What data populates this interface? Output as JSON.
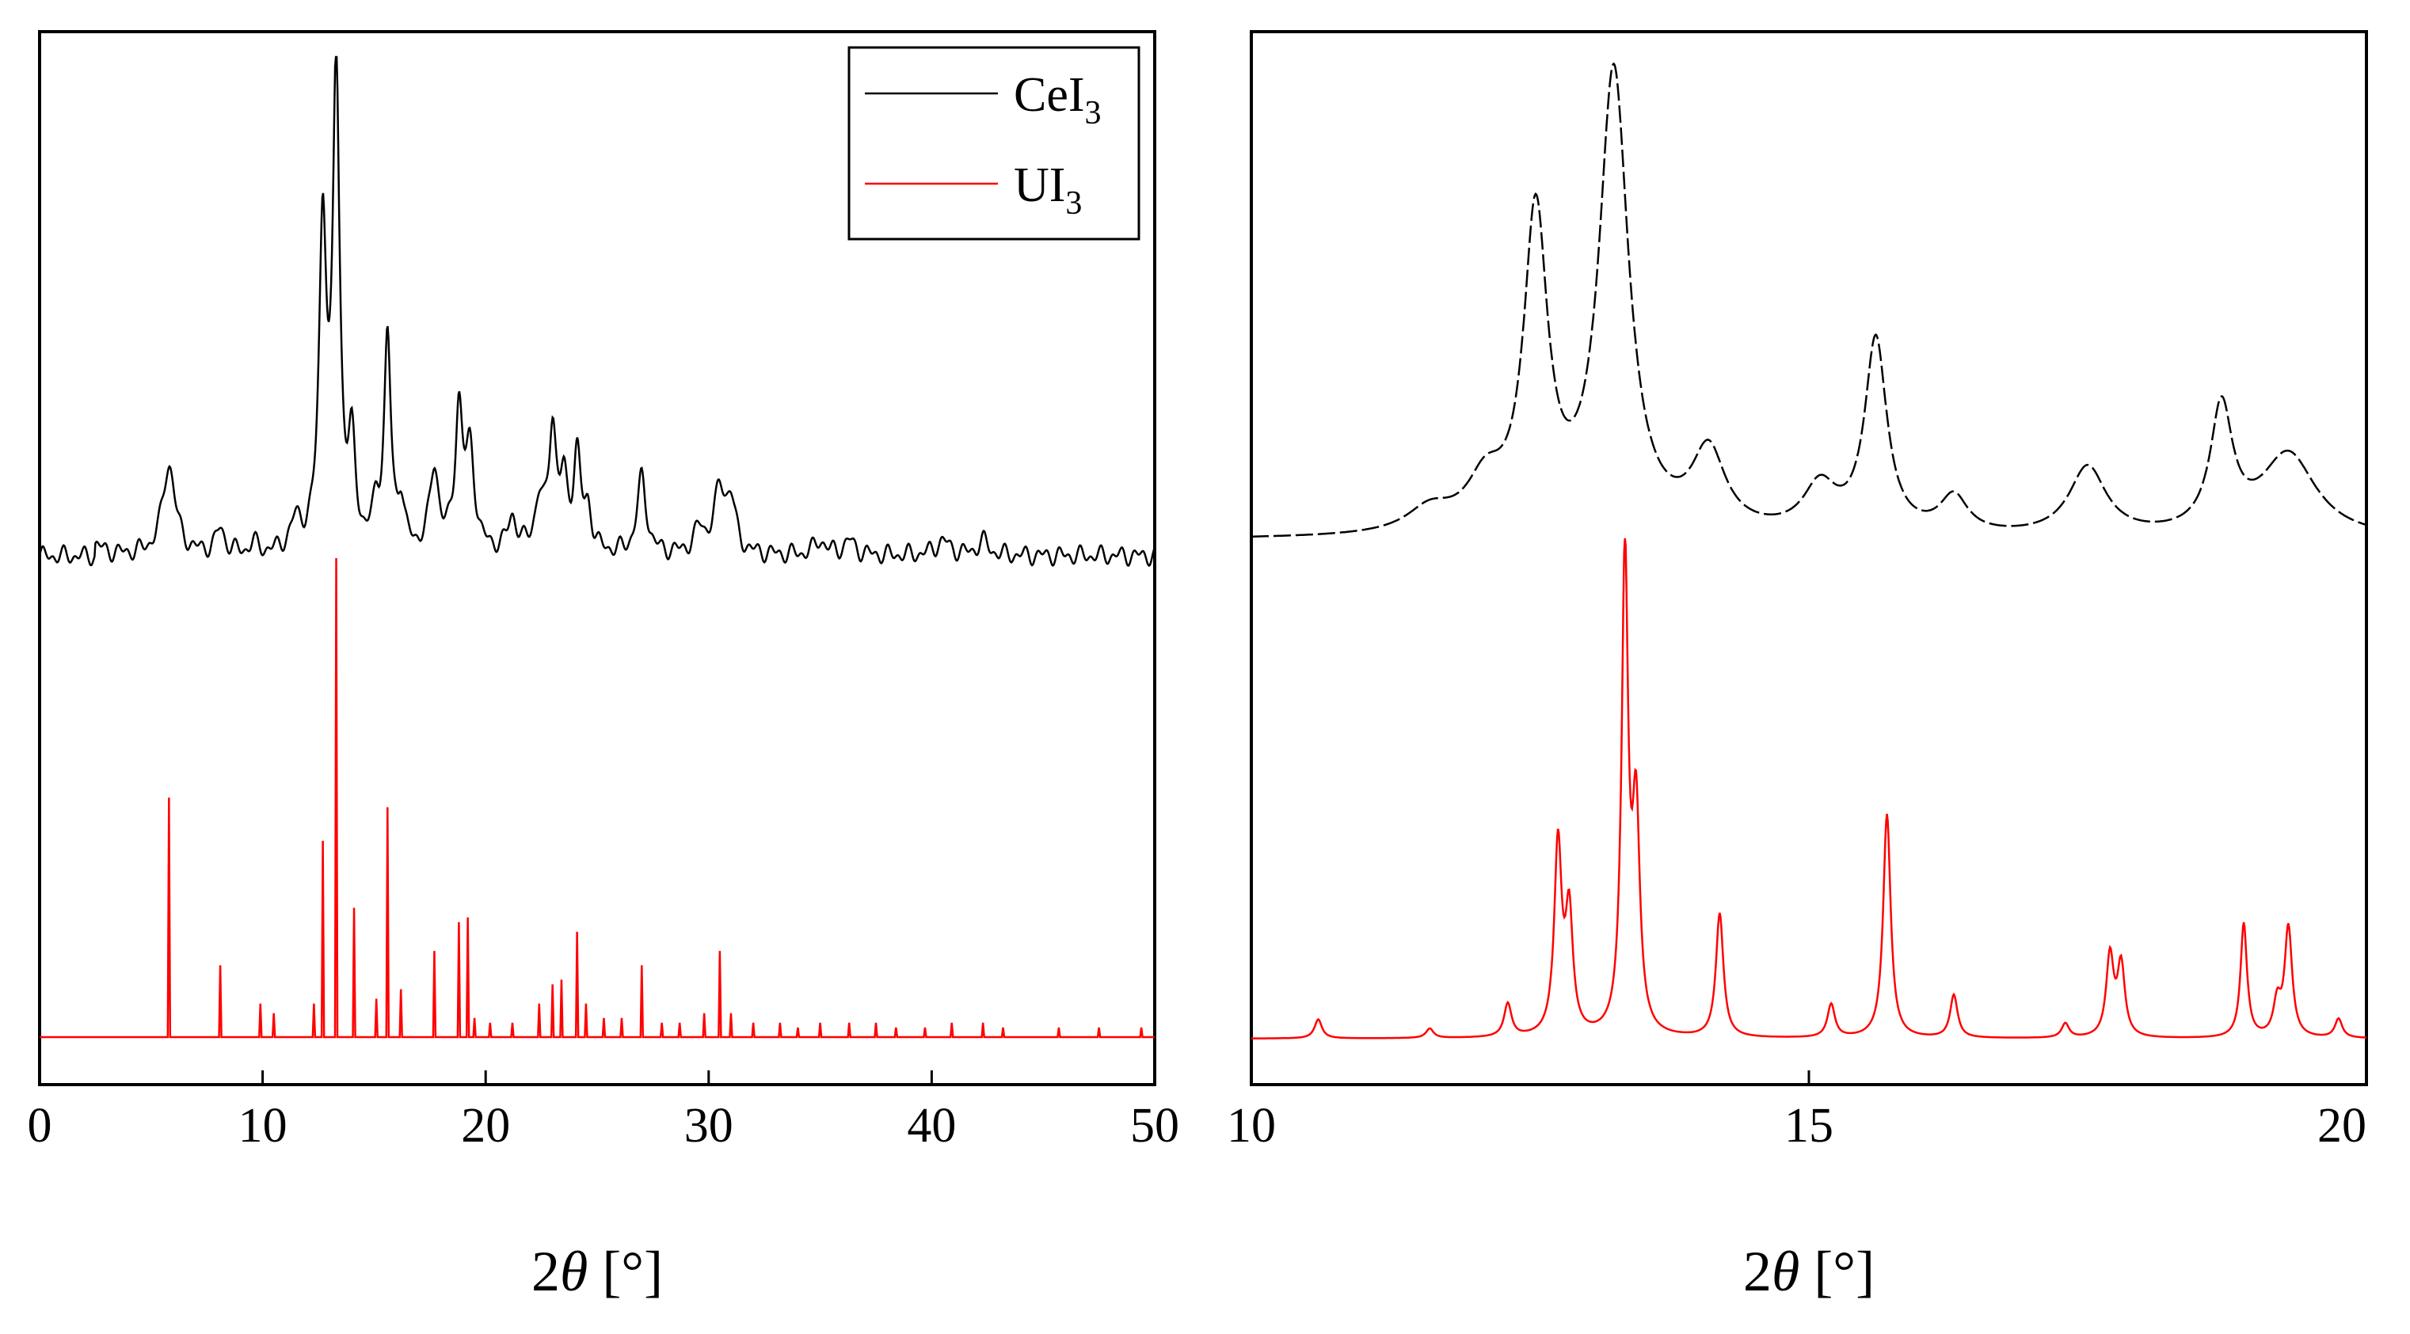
{
  "chart_data": [
    {
      "type": "line",
      "panel": "left",
      "xlabel": "2θ [°]",
      "xlabel_var": "θ",
      "xlabel_prefix": "2",
      "xlabel_suffix": " [°]",
      "ylabel": "",
      "xlim": [
        0,
        50
      ],
      "xticks": [
        0,
        10,
        20,
        30,
        40,
        50
      ],
      "legend": {
        "position": "top-right",
        "entries": [
          {
            "base": "CeI",
            "sub": "3",
            "color": "#000000"
          },
          {
            "base": "UI",
            "sub": "3",
            "color": "#ff0000"
          }
        ]
      },
      "series": [
        {
          "name": "CeI3",
          "color": "#000000",
          "style": "profile",
          "peaks": [
            [
              2.5,
              0.02,
              0.4
            ],
            [
              5.8,
              0.19,
              0.35
            ],
            [
              8.1,
              0.05,
              0.25
            ],
            [
              9.6,
              0.02,
              0.2
            ],
            [
              11.5,
              0.06,
              0.3
            ],
            [
              12.7,
              0.68,
              0.2
            ],
            [
              13.3,
              1.0,
              0.18
            ],
            [
              14.0,
              0.2,
              0.2
            ],
            [
              15.1,
              0.08,
              0.2
            ],
            [
              15.6,
              0.44,
              0.18
            ],
            [
              16.2,
              0.1,
              0.18
            ],
            [
              17.7,
              0.17,
              0.25
            ],
            [
              18.8,
              0.29,
              0.2
            ],
            [
              19.3,
              0.2,
              0.25
            ],
            [
              21.2,
              0.07,
              0.25
            ],
            [
              22.4,
              0.1,
              0.25
            ],
            [
              23.0,
              0.26,
              0.2
            ],
            [
              23.5,
              0.13,
              0.2
            ],
            [
              24.1,
              0.2,
              0.2
            ],
            [
              24.6,
              0.08,
              0.2
            ],
            [
              27.0,
              0.16,
              0.25
            ],
            [
              29.6,
              0.05,
              0.3
            ],
            [
              30.5,
              0.13,
              0.3
            ],
            [
              31.0,
              0.1,
              0.25
            ],
            [
              35.0,
              0.03,
              0.3
            ],
            [
              36.3,
              0.03,
              0.3
            ],
            [
              40.5,
              0.03,
              0.4
            ],
            [
              42.3,
              0.03,
              0.3
            ]
          ]
        },
        {
          "name": "UI3",
          "color": "#ff0000",
          "style": "stick",
          "peaks": [
            [
              5.8,
              0.5
            ],
            [
              8.1,
              0.15
            ],
            [
              9.9,
              0.07
            ],
            [
              10.5,
              0.05
            ],
            [
              12.3,
              0.07
            ],
            [
              12.7,
              0.41
            ],
            [
              13.3,
              1.0
            ],
            [
              14.1,
              0.27
            ],
            [
              15.1,
              0.08
            ],
            [
              15.6,
              0.48
            ],
            [
              16.2,
              0.1
            ],
            [
              17.7,
              0.18
            ],
            [
              18.8,
              0.24
            ],
            [
              19.2,
              0.25
            ],
            [
              19.5,
              0.04
            ],
            [
              20.2,
              0.03
            ],
            [
              21.2,
              0.03
            ],
            [
              22.4,
              0.07
            ],
            [
              23.0,
              0.11
            ],
            [
              23.4,
              0.12
            ],
            [
              24.1,
              0.22
            ],
            [
              24.5,
              0.07
            ],
            [
              25.3,
              0.04
            ],
            [
              26.1,
              0.04
            ],
            [
              27.0,
              0.15
            ],
            [
              27.9,
              0.03
            ],
            [
              28.7,
              0.03
            ],
            [
              29.8,
              0.05
            ],
            [
              30.5,
              0.18
            ],
            [
              31.0,
              0.05
            ],
            [
              32.0,
              0.03
            ],
            [
              33.2,
              0.03
            ],
            [
              34.0,
              0.02
            ],
            [
              35.0,
              0.03
            ],
            [
              36.3,
              0.03
            ],
            [
              37.5,
              0.03
            ],
            [
              38.4,
              0.02
            ],
            [
              39.7,
              0.02
            ],
            [
              40.9,
              0.03
            ],
            [
              42.3,
              0.03
            ],
            [
              43.2,
              0.02
            ],
            [
              45.7,
              0.02
            ],
            [
              47.5,
              0.02
            ],
            [
              49.4,
              0.02
            ]
          ]
        }
      ]
    },
    {
      "type": "line",
      "panel": "right",
      "xlabel": "2θ [°]",
      "xlabel_var": "θ",
      "xlabel_prefix": "2",
      "xlabel_suffix": " [°]",
      "ylabel": "",
      "xlim": [
        10,
        20
      ],
      "xticks": [
        10,
        15,
        20
      ],
      "series": [
        {
          "name": "CeI3",
          "color": "#000000",
          "style": "profile",
          "peaks": [
            [
              11.6,
              0.05,
              0.25
            ],
            [
              12.1,
              0.1,
              0.2
            ],
            [
              12.55,
              0.68,
              0.13
            ],
            [
              13.25,
              1.0,
              0.16
            ],
            [
              14.1,
              0.17,
              0.18
            ],
            [
              15.1,
              0.1,
              0.18
            ],
            [
              15.6,
              0.42,
              0.12
            ],
            [
              16.3,
              0.08,
              0.15
            ],
            [
              17.5,
              0.15,
              0.2
            ],
            [
              18.7,
              0.27,
              0.12
            ],
            [
              19.3,
              0.18,
              0.3
            ]
          ]
        },
        {
          "name": "UI3",
          "color": "#ff0000",
          "style": "profile",
          "peaks": [
            [
              10.6,
              0.04,
              0.04
            ],
            [
              11.6,
              0.02,
              0.04
            ],
            [
              12.3,
              0.07,
              0.04
            ],
            [
              12.75,
              0.4,
              0.04
            ],
            [
              12.85,
              0.25,
              0.04
            ],
            [
              13.35,
              1.0,
              0.035
            ],
            [
              13.45,
              0.45,
              0.04
            ],
            [
              14.2,
              0.26,
              0.04
            ],
            [
              15.2,
              0.07,
              0.04
            ],
            [
              15.7,
              0.47,
              0.04
            ],
            [
              16.3,
              0.09,
              0.04
            ],
            [
              17.3,
              0.03,
              0.04
            ],
            [
              17.7,
              0.17,
              0.04
            ],
            [
              17.8,
              0.15,
              0.04
            ],
            [
              18.9,
              0.24,
              0.035
            ],
            [
              19.2,
              0.07,
              0.04
            ],
            [
              19.3,
              0.23,
              0.04
            ],
            [
              19.75,
              0.04,
              0.04
            ]
          ]
        }
      ]
    }
  ]
}
